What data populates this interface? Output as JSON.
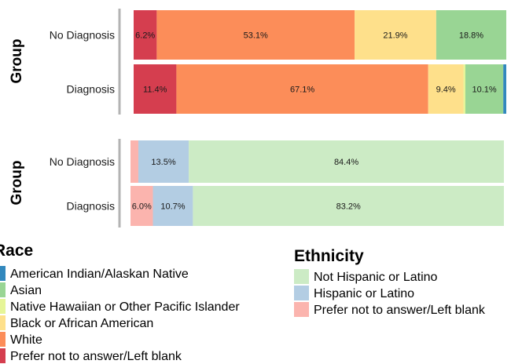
{
  "chart_data": [
    {
      "type": "bar",
      "orientation": "horizontal",
      "stacked": true,
      "ylabel": "Group",
      "categories": [
        "No Diagnosis",
        "Diagnosis"
      ],
      "legend_title": "Race",
      "series": [
        {
          "name": "Prefer not to answer/Left blank",
          "color": "#d53e4f",
          "values": [
            6.2,
            11.4
          ],
          "labels": [
            "6.2%",
            "11.4%"
          ]
        },
        {
          "name": "White",
          "color": "#fc8d59",
          "values": [
            53.1,
            67.1
          ],
          "labels": [
            "53.1%",
            "67.1%"
          ]
        },
        {
          "name": "Black or African American",
          "color": "#fee08b",
          "values": [
            21.9,
            9.4
          ],
          "labels": [
            "21.9%",
            "9.4%"
          ]
        },
        {
          "name": "Native Hawaiian or Other Pacific Islander",
          "color": "#e6f598",
          "values": [
            0,
            0.5
          ],
          "labels": [
            "",
            ""
          ]
        },
        {
          "name": "Asian",
          "color": "#99d594",
          "values": [
            18.8,
            10.1
          ],
          "labels": [
            "18.8%",
            "10.1%"
          ]
        },
        {
          "name": "American Indian/Alaskan Native",
          "color": "#3288bd",
          "values": [
            0,
            0.8
          ],
          "labels": [
            "",
            ""
          ]
        }
      ],
      "legend_order": [
        "American Indian/Alaskan Native",
        "Asian",
        "Native Hawaiian or Other Pacific Islander",
        "Black or African American",
        "White",
        "Prefer not to answer/Left blank"
      ]
    },
    {
      "type": "bar",
      "orientation": "horizontal",
      "stacked": true,
      "ylabel": "Group",
      "categories": [
        "No Diagnosis",
        "Diagnosis"
      ],
      "legend_title": "Ethnicity",
      "series": [
        {
          "name": "Prefer not to answer/Left blank",
          "color": "#fbb4ae",
          "values": [
            2.1,
            6.0
          ],
          "labels": [
            "",
            "6.0%"
          ]
        },
        {
          "name": "Hispanic or Latino",
          "color": "#b3cde3",
          "values": [
            13.5,
            10.7
          ],
          "labels": [
            "13.5%",
            "10.7%"
          ]
        },
        {
          "name": "Not Hispanic or Latino",
          "color": "#ccebc5",
          "values": [
            84.4,
            83.2
          ],
          "labels": [
            "84.4%",
            "83.2%"
          ]
        }
      ],
      "legend_order": [
        "Not Hispanic or Latino",
        "Hispanic or Latino",
        "Prefer not to answer/Left blank"
      ]
    }
  ]
}
